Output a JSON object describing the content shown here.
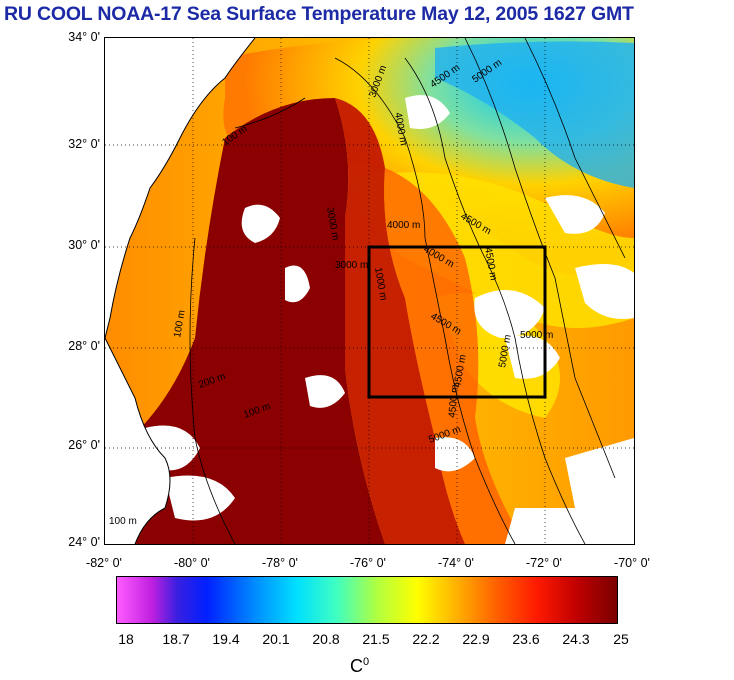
{
  "title": "RU COOL  NOAA-17 Sea Surface Temperature May 12, 2005 1627 GMT",
  "map": {
    "lat_labels": [
      "34° 0'",
      "32° 0'",
      "30° 0'",
      "28° 0'",
      "26° 0'",
      "24° 0'"
    ],
    "lon_labels": [
      "-82° 0'",
      "-80° 0'",
      "-78° 0'",
      "-76° 0'",
      "-74° 0'",
      "-72° 0'",
      "-70° 0'"
    ],
    "contour_labels": [
      "3000 m",
      "4500 m",
      "5000 m",
      "100 m",
      "4000 m",
      "4000 m",
      "3000 m",
      "4000 m",
      "4500 m",
      "4500 m",
      "3000 m",
      "1000 m",
      "4500 m",
      "5000 m",
      "4500 m",
      "5000 m",
      "100 m",
      "200 m",
      "100 m",
      "5000 m",
      "4500 m",
      "100 m"
    ],
    "study_box": {
      "lon_range": [
        -76,
        -72
      ],
      "lat_range": [
        27,
        30
      ]
    },
    "colors": {
      "warm": "#8b0000",
      "mid": "#ff8c00",
      "cool": "#00bfff",
      "land": "#ffffff",
      "box": "#000000"
    }
  },
  "colorbar": {
    "tick_labels": [
      "18",
      "18.7",
      "19.4",
      "20.1",
      "20.8",
      "21.5",
      "22.2",
      "22.9",
      "23.6",
      "24.3",
      "25"
    ],
    "unit_base": "C",
    "unit_sup": "0"
  }
}
